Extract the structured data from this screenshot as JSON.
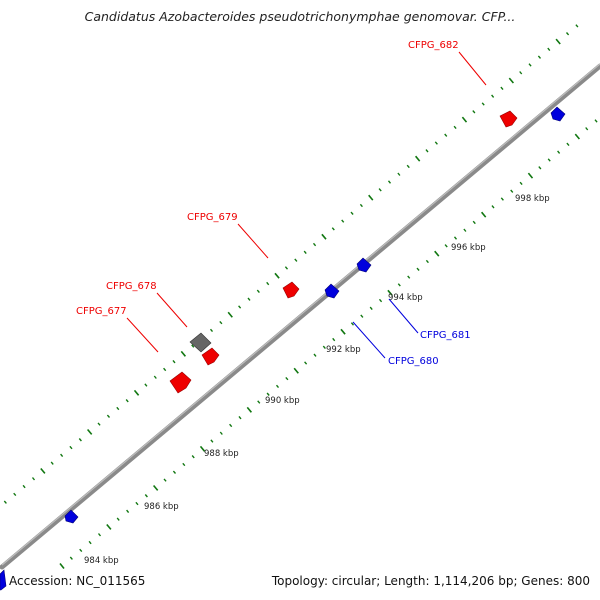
{
  "title": "Candidatus Azobacteroides pseudotrichonymphae genomovar. CFP...",
  "footer": {
    "accession": "Accession: NC_011565",
    "summary": "Topology: circular; Length: 1,114,206 bp; Genes: 800"
  },
  "colors": {
    "forward_gene": "#ee0000",
    "reverse_gene": "#0000dd",
    "other_gene": "#666666",
    "backbone": "#8a8a8a",
    "tick": "#117711"
  },
  "tick_labels": [
    "984 kbp",
    "986 kbp",
    "988 kbp",
    "990 kbp",
    "992 kbp",
    "994 kbp",
    "996 kbp",
    "998 kbp"
  ],
  "gene_labels": {
    "g677": "CFPG_677",
    "g678": "CFPG_678",
    "g679": "CFPG_679",
    "g680": "CFPG_680",
    "g681": "CFPG_681",
    "g682": "CFPG_682"
  }
}
